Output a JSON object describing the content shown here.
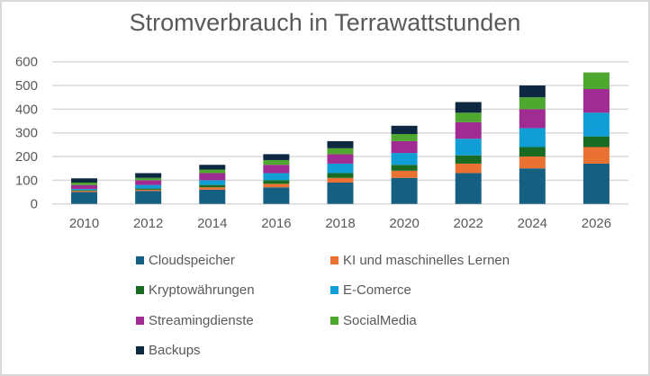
{
  "chart_data": {
    "type": "bar",
    "stacked": true,
    "title": "Stromverbrauch in Terrawattstunden",
    "xlabel": "",
    "ylabel": "",
    "ylim": [
      0,
      600
    ],
    "yticks": [
      0,
      100,
      200,
      300,
      400,
      500,
      600
    ],
    "grid": true,
    "legend_position": "bottom",
    "categories": [
      "2010",
      "2012",
      "2014",
      "2016",
      "2018",
      "2020",
      "2022",
      "2024",
      "2026"
    ],
    "series": [
      {
        "name": "Cloudspeicher",
        "color": "#156082",
        "values": [
          50,
          55,
          60,
          70,
          90,
          110,
          130,
          150,
          170
        ]
      },
      {
        "name": "KI und maschinelles Lernen",
        "color": "#e97132",
        "values": [
          5,
          5,
          10,
          15,
          20,
          30,
          40,
          50,
          70
        ]
      },
      {
        "name": "Kryptowährungen",
        "color": "#196b24",
        "values": [
          3,
          5,
          10,
          15,
          20,
          25,
          35,
          40,
          45
        ]
      },
      {
        "name": "E-Comerce",
        "color": "#0f9ed5",
        "values": [
          5,
          15,
          20,
          30,
          40,
          50,
          70,
          80,
          100
        ]
      },
      {
        "name": "Streamingdienste",
        "color": "#a02b93",
        "values": [
          17,
          20,
          30,
          35,
          40,
          50,
          70,
          80,
          100
        ]
      },
      {
        "name": "SocialMedia",
        "color": "#4ea72e",
        "values": [
          10,
          10,
          15,
          20,
          25,
          30,
          40,
          50,
          70
        ]
      },
      {
        "name": "Backups",
        "color": "#0e2841",
        "values": [
          18,
          20,
          20,
          25,
          30,
          35,
          45,
          50,
          0
        ]
      }
    ]
  }
}
